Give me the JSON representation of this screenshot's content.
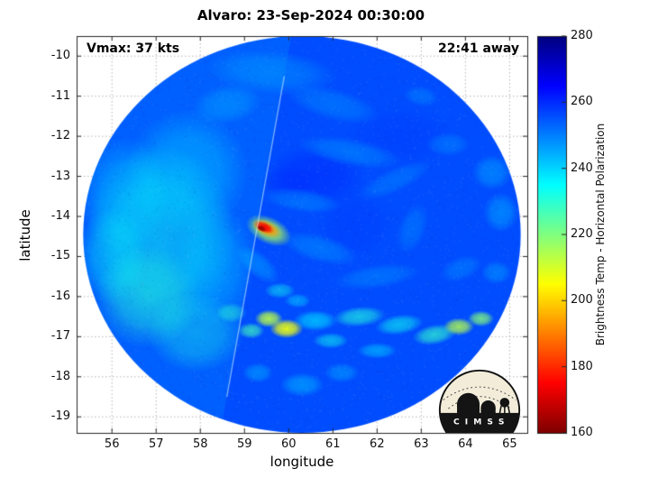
{
  "chart_data": {
    "type": "heatmap",
    "title": "Alvaro: 23-Sep-2024 00:30:00",
    "xlabel": "longitude",
    "ylabel": "latitude",
    "annotations": {
      "vmax": "Vmax: 37 kts",
      "eta": "22:41 away"
    },
    "xlim": [
      55.2,
      65.4
    ],
    "ylim": [
      -19.4,
      -9.5
    ],
    "x_ticks": [
      56,
      57,
      58,
      59,
      60,
      61,
      62,
      63,
      64,
      65
    ],
    "y_ticks": [
      -10,
      -11,
      -12,
      -13,
      -14,
      -15,
      -16,
      -17,
      -18,
      -19
    ],
    "grid": true,
    "colormap": "jet-reversed",
    "value_range": [
      160,
      280
    ],
    "background_value": 256,
    "colorbar": {
      "label": "Brightness Temp - Horizontal Polarization",
      "min": 160,
      "max": 280,
      "ticks": [
        160,
        180,
        200,
        220,
        240,
        260,
        280
      ],
      "position": "right"
    },
    "swath": {
      "center_lon": 60.3,
      "center_lat": -14.45,
      "radius_deg": 4.95
    },
    "seam": {
      "from": [
        59.9,
        -10.5
      ],
      "to": [
        58.6,
        -18.5
      ]
    },
    "features": [
      {
        "lon": 57.1,
        "lat": -14.6,
        "rx": 1.7,
        "ry": 2.4,
        "rot": 0,
        "t": 233,
        "a": 0.5
      },
      {
        "lon": 56.8,
        "lat": -16.0,
        "rx": 1.2,
        "ry": 1.3,
        "rot": 0,
        "t": 230,
        "a": 0.45
      },
      {
        "lon": 57.7,
        "lat": -12.9,
        "rx": 1.4,
        "ry": 1.6,
        "rot": 0,
        "t": 237,
        "a": 0.4
      },
      {
        "lon": 56.3,
        "lat": -13.5,
        "rx": 1.0,
        "ry": 1.5,
        "rot": 0,
        "t": 236,
        "a": 0.35
      },
      {
        "lon": 57.9,
        "lat": -16.9,
        "rx": 1.1,
        "ry": 1.0,
        "rot": 0,
        "t": 232,
        "a": 0.4
      },
      {
        "lon": 58.3,
        "lat": -15.2,
        "rx": 0.9,
        "ry": 1.6,
        "rot": 0,
        "t": 238,
        "a": 0.35
      },
      {
        "lon": 56.0,
        "lat": -15.0,
        "rx": 0.8,
        "ry": 1.2,
        "rot": 0,
        "t": 234,
        "a": 0.35
      },
      {
        "lon": 60.6,
        "lat": -13.0,
        "rx": 1.2,
        "ry": 0.8,
        "rot": 0,
        "t": 261,
        "a": 0.5
      },
      {
        "lon": 62.5,
        "lat": -12.0,
        "rx": 1.3,
        "ry": 0.8,
        "rot": 0,
        "t": 259,
        "a": 0.35
      },
      {
        "lon": 61.5,
        "lat": -14.2,
        "rx": 0.9,
        "ry": 0.9,
        "rot": 0,
        "t": 259,
        "a": 0.35
      },
      {
        "lon": 60.0,
        "lat": -13.2,
        "rx": 0.6,
        "ry": 0.5,
        "rot": 0,
        "t": 260,
        "a": 0.4
      },
      {
        "lon": 59.6,
        "lat": -10.4,
        "rx": 1.5,
        "ry": 0.55,
        "rot": 5,
        "t": 245,
        "a": 0.45
      },
      {
        "lon": 61.0,
        "lat": -11.2,
        "rx": 1.1,
        "ry": 0.4,
        "rot": 15,
        "t": 246,
        "a": 0.4
      },
      {
        "lon": 58.6,
        "lat": -11.2,
        "rx": 0.8,
        "ry": 0.5,
        "rot": -10,
        "t": 243,
        "a": 0.4
      },
      {
        "lon": 61.4,
        "lat": -12.4,
        "rx": 1.2,
        "ry": 0.35,
        "rot": 10,
        "t": 246,
        "a": 0.45
      },
      {
        "lon": 62.4,
        "lat": -13.1,
        "rx": 0.9,
        "ry": 0.3,
        "rot": -25,
        "t": 247,
        "a": 0.4
      },
      {
        "lon": 62.8,
        "lat": -14.3,
        "rx": 0.6,
        "ry": 0.35,
        "rot": -70,
        "t": 247,
        "a": 0.4
      },
      {
        "lon": 62.0,
        "lat": -15.5,
        "rx": 1.0,
        "ry": 0.3,
        "rot": -8,
        "t": 246,
        "a": 0.4
      },
      {
        "lon": 63.6,
        "lat": -12.2,
        "rx": 0.5,
        "ry": 0.3,
        "rot": 0,
        "t": 245,
        "a": 0.35
      },
      {
        "lon": 64.6,
        "lat": -12.9,
        "rx": 0.45,
        "ry": 0.45,
        "rot": 0,
        "t": 243,
        "a": 0.45
      },
      {
        "lon": 64.8,
        "lat": -13.9,
        "rx": 0.4,
        "ry": 0.5,
        "rot": 0,
        "t": 242,
        "a": 0.45
      },
      {
        "lon": 63.9,
        "lat": -15.3,
        "rx": 0.5,
        "ry": 0.3,
        "rot": -20,
        "t": 245,
        "a": 0.35
      },
      {
        "lon": 63.0,
        "lat": -11.0,
        "rx": 0.4,
        "ry": 0.25,
        "rot": 10,
        "t": 245,
        "a": 0.35
      },
      {
        "lon": 64.7,
        "lat": -15.4,
        "rx": 0.35,
        "ry": 0.3,
        "rot": 0,
        "t": 243,
        "a": 0.4
      },
      {
        "lon": 60.3,
        "lat": -13.6,
        "rx": 0.9,
        "ry": 0.3,
        "rot": 8,
        "t": 243,
        "a": 0.35
      },
      {
        "lon": 60.7,
        "lat": -14.8,
        "rx": 0.9,
        "ry": 0.35,
        "rot": 15,
        "t": 243,
        "a": 0.35
      },
      {
        "lon": 59.3,
        "lat": -15.2,
        "rx": 0.6,
        "ry": 0.3,
        "rot": 40,
        "t": 240,
        "a": 0.35
      },
      {
        "lon": 59.8,
        "lat": -15.85,
        "rx": 0.35,
        "ry": 0.2,
        "rot": 0,
        "t": 233,
        "a": 0.5
      },
      {
        "lon": 60.2,
        "lat": -16.1,
        "rx": 0.3,
        "ry": 0.18,
        "rot": 0,
        "t": 237,
        "a": 0.45
      },
      {
        "lon": 58.7,
        "lat": -16.4,
        "rx": 0.35,
        "ry": 0.25,
        "rot": 0,
        "t": 230,
        "a": 0.5
      },
      {
        "lon": 59.15,
        "lat": -16.85,
        "rx": 0.3,
        "ry": 0.2,
        "rot": 0,
        "t": 227,
        "a": 0.7
      },
      {
        "lon": 60.6,
        "lat": -16.6,
        "rx": 0.5,
        "ry": 0.26,
        "rot": 0,
        "t": 236,
        "a": 0.6
      },
      {
        "lon": 61.6,
        "lat": -16.5,
        "rx": 0.6,
        "ry": 0.25,
        "rot": -5,
        "t": 231,
        "a": 0.65
      },
      {
        "lon": 62.5,
        "lat": -16.7,
        "rx": 0.55,
        "ry": 0.25,
        "rot": -8,
        "t": 233,
        "a": 0.6
      },
      {
        "lon": 63.3,
        "lat": -16.95,
        "rx": 0.5,
        "ry": 0.25,
        "rot": -10,
        "t": 229,
        "a": 0.7
      },
      {
        "lon": 63.85,
        "lat": -16.75,
        "rx": 0.35,
        "ry": 0.22,
        "rot": 0,
        "t": 214,
        "a": 0.85
      },
      {
        "lon": 64.35,
        "lat": -16.55,
        "rx": 0.3,
        "ry": 0.2,
        "rot": 0,
        "t": 219,
        "a": 0.8
      },
      {
        "lon": 60.95,
        "lat": -17.1,
        "rx": 0.4,
        "ry": 0.2,
        "rot": 0,
        "t": 233,
        "a": 0.55
      },
      {
        "lon": 62.0,
        "lat": -17.35,
        "rx": 0.45,
        "ry": 0.2,
        "rot": 0,
        "t": 238,
        "a": 0.5
      },
      {
        "lon": 60.3,
        "lat": -18.2,
        "rx": 0.5,
        "ry": 0.3,
        "rot": 0,
        "t": 241,
        "a": 0.5
      },
      {
        "lon": 61.2,
        "lat": -17.9,
        "rx": 0.4,
        "ry": 0.25,
        "rot": 0,
        "t": 243,
        "a": 0.45
      },
      {
        "lon": 59.3,
        "lat": -17.9,
        "rx": 0.35,
        "ry": 0.25,
        "rot": 0,
        "t": 240,
        "a": 0.4
      },
      {
        "lon": 59.55,
        "lat": -16.55,
        "rx": 0.32,
        "ry": 0.22,
        "rot": 0,
        "t": 213,
        "a": 0.9
      },
      {
        "lon": 59.95,
        "lat": -16.8,
        "rx": 0.38,
        "ry": 0.24,
        "rot": 0,
        "t": 207,
        "a": 0.95
      },
      {
        "lon": 59.55,
        "lat": -14.35,
        "rx": 0.55,
        "ry": 0.34,
        "rot": 25,
        "t": 215,
        "a": 0.85
      },
      {
        "lon": 59.5,
        "lat": -14.3,
        "rx": 0.36,
        "ry": 0.2,
        "rot": 25,
        "t": 193,
        "a": 0.95
      },
      {
        "lon": 59.45,
        "lat": -14.27,
        "rx": 0.24,
        "ry": 0.13,
        "rot": 25,
        "t": 174,
        "a": 1
      },
      {
        "lon": 59.38,
        "lat": -14.3,
        "rx": 0.13,
        "ry": 0.07,
        "rot": 25,
        "t": 163,
        "a": 1
      }
    ]
  },
  "logo": {
    "text": "C I M S S"
  }
}
